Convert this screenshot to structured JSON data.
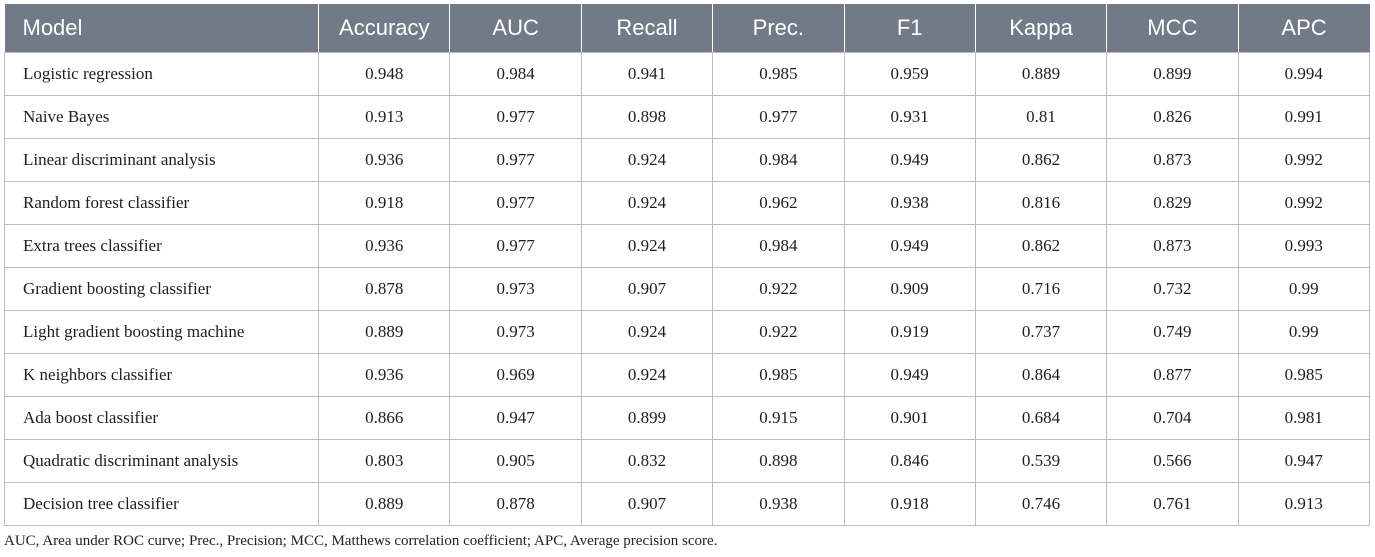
{
  "table": {
    "columns": [
      "Model",
      "Accuracy",
      "AUC",
      "Recall",
      "Prec.",
      "F1",
      "Kappa",
      "MCC",
      "APC"
    ],
    "rows": [
      {
        "model": "Logistic regression",
        "values": [
          "0.948",
          "0.984",
          "0.941",
          "0.985",
          "0.959",
          "0.889",
          "0.899",
          "0.994"
        ]
      },
      {
        "model": "Naive Bayes",
        "values": [
          "0.913",
          "0.977",
          "0.898",
          "0.977",
          "0.931",
          "0.81",
          "0.826",
          "0.991"
        ]
      },
      {
        "model": "Linear discriminant analysis",
        "values": [
          "0.936",
          "0.977",
          "0.924",
          "0.984",
          "0.949",
          "0.862",
          "0.873",
          "0.992"
        ]
      },
      {
        "model": "Random forest classifier",
        "values": [
          "0.918",
          "0.977",
          "0.924",
          "0.962",
          "0.938",
          "0.816",
          "0.829",
          "0.992"
        ]
      },
      {
        "model": "Extra trees classifier",
        "values": [
          "0.936",
          "0.977",
          "0.924",
          "0.984",
          "0.949",
          "0.862",
          "0.873",
          "0.993"
        ]
      },
      {
        "model": "Gradient boosting classifier",
        "values": [
          "0.878",
          "0.973",
          "0.907",
          "0.922",
          "0.909",
          "0.716",
          "0.732",
          "0.99"
        ]
      },
      {
        "model": "Light gradient boosting machine",
        "values": [
          "0.889",
          "0.973",
          "0.924",
          "0.922",
          "0.919",
          "0.737",
          "0.749",
          "0.99"
        ]
      },
      {
        "model": "K neighbors classifier",
        "values": [
          "0.936",
          "0.969",
          "0.924",
          "0.985",
          "0.949",
          "0.864",
          "0.877",
          "0.985"
        ]
      },
      {
        "model": "Ada boost classifier",
        "values": [
          "0.866",
          "0.947",
          "0.899",
          "0.915",
          "0.901",
          "0.684",
          "0.704",
          "0.981"
        ]
      },
      {
        "model": "Quadratic discriminant analysis",
        "values": [
          "0.803",
          "0.905",
          "0.832",
          "0.898",
          "0.846",
          "0.539",
          "0.566",
          "0.947"
        ]
      },
      {
        "model": "Decision tree classifier",
        "values": [
          "0.889",
          "0.878",
          "0.907",
          "0.938",
          "0.918",
          "0.746",
          "0.761",
          "0.913"
        ]
      }
    ]
  },
  "footnote": "AUC, Area under ROC curve; Prec., Precision; MCC, Matthews correlation coefficient; APC, Average precision score.",
  "colors": {
    "header_background": "#717a86",
    "header_text": "#ffffff",
    "border": "#bdbdbd"
  }
}
